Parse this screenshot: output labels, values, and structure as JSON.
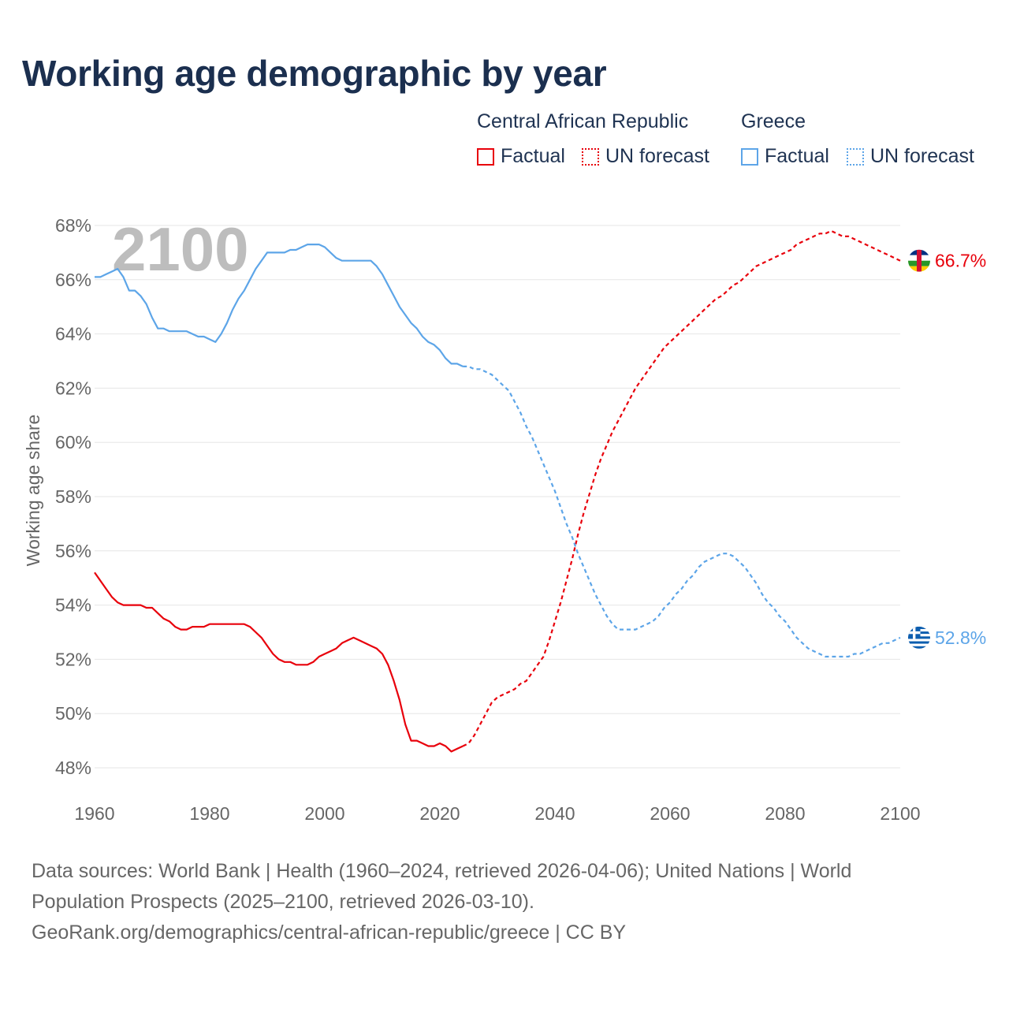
{
  "title": "Working age demographic by year",
  "legend": {
    "groups": [
      {
        "name": "Central African Republic",
        "factual_label": "Factual",
        "forecast_label": "UN forecast",
        "color": "#e8000b"
      },
      {
        "name": "Greece",
        "factual_label": "Factual",
        "forecast_label": "UN forecast",
        "color": "#5da5e8"
      }
    ]
  },
  "year_display": "2100",
  "footer": {
    "line1": "Data sources: World Bank | Health (1960–2024, retrieved 2026-04-06); United Nations | World",
    "line2": "Population Prospects (2025–2100, retrieved 2026-03-10).",
    "line3": "GeoRank.org/demographics/central-african-republic/greece | CC BY"
  },
  "chart_data": {
    "type": "line",
    "ylabel": "Working age share",
    "xlabel": "",
    "xlim": [
      1960,
      2100
    ],
    "ylim": [
      47,
      68.5
    ],
    "x_ticks": [
      "1960",
      "1980",
      "2000",
      "2020",
      "2040",
      "2060",
      "2080",
      "2100"
    ],
    "y_ticks": [
      "48%",
      "50%",
      "52%",
      "54%",
      "56%",
      "58%",
      "60%",
      "62%",
      "64%",
      "66%",
      "68%"
    ],
    "factual_years": [
      1960,
      2024
    ],
    "forecast_years": [
      2024,
      2100
    ],
    "series": [
      {
        "name": "Central African Republic",
        "color": "#e8000b",
        "end_label": "66.7%",
        "factual": [
          [
            1960,
            55.2
          ],
          [
            1961,
            54.9
          ],
          [
            1962,
            54.6
          ],
          [
            1963,
            54.3
          ],
          [
            1964,
            54.1
          ],
          [
            1965,
            54.0
          ],
          [
            1966,
            54.0
          ],
          [
            1967,
            54.0
          ],
          [
            1968,
            54.0
          ],
          [
            1969,
            53.9
          ],
          [
            1970,
            53.9
          ],
          [
            1971,
            53.7
          ],
          [
            1972,
            53.5
          ],
          [
            1973,
            53.4
          ],
          [
            1974,
            53.2
          ],
          [
            1975,
            53.1
          ],
          [
            1976,
            53.1
          ],
          [
            1977,
            53.2
          ],
          [
            1978,
            53.2
          ],
          [
            1979,
            53.2
          ],
          [
            1980,
            53.3
          ],
          [
            1981,
            53.3
          ],
          [
            1982,
            53.3
          ],
          [
            1983,
            53.3
          ],
          [
            1984,
            53.3
          ],
          [
            1985,
            53.3
          ],
          [
            1986,
            53.3
          ],
          [
            1987,
            53.2
          ],
          [
            1988,
            53.0
          ],
          [
            1989,
            52.8
          ],
          [
            1990,
            52.5
          ],
          [
            1991,
            52.2
          ],
          [
            1992,
            52.0
          ],
          [
            1993,
            51.9
          ],
          [
            1994,
            51.9
          ],
          [
            1995,
            51.8
          ],
          [
            1996,
            51.8
          ],
          [
            1997,
            51.8
          ],
          [
            1998,
            51.9
          ],
          [
            1999,
            52.1
          ],
          [
            2000,
            52.2
          ],
          [
            2001,
            52.3
          ],
          [
            2002,
            52.4
          ],
          [
            2003,
            52.6
          ],
          [
            2004,
            52.7
          ],
          [
            2005,
            52.8
          ],
          [
            2006,
            52.7
          ],
          [
            2007,
            52.6
          ],
          [
            2008,
            52.5
          ],
          [
            2009,
            52.4
          ],
          [
            2010,
            52.2
          ],
          [
            2011,
            51.8
          ],
          [
            2012,
            51.2
          ],
          [
            2013,
            50.5
          ],
          [
            2014,
            49.6
          ],
          [
            2015,
            49.0
          ],
          [
            2016,
            49.0
          ],
          [
            2017,
            48.9
          ],
          [
            2018,
            48.8
          ],
          [
            2019,
            48.8
          ],
          [
            2020,
            48.9
          ],
          [
            2021,
            48.8
          ],
          [
            2022,
            48.6
          ],
          [
            2023,
            48.7
          ],
          [
            2024,
            48.8
          ]
        ],
        "forecast": [
          [
            2024,
            48.8
          ],
          [
            2025,
            48.9
          ],
          [
            2026,
            49.2
          ],
          [
            2027,
            49.6
          ],
          [
            2028,
            50.0
          ],
          [
            2029,
            50.4
          ],
          [
            2030,
            50.6
          ],
          [
            2031,
            50.7
          ],
          [
            2032,
            50.8
          ],
          [
            2033,
            50.9
          ],
          [
            2034,
            51.1
          ],
          [
            2035,
            51.2
          ],
          [
            2036,
            51.5
          ],
          [
            2037,
            51.8
          ],
          [
            2038,
            52.1
          ],
          [
            2039,
            52.7
          ],
          [
            2040,
            53.4
          ],
          [
            2041,
            54.1
          ],
          [
            2042,
            54.9
          ],
          [
            2043,
            55.7
          ],
          [
            2044,
            56.6
          ],
          [
            2045,
            57.4
          ],
          [
            2046,
            58.1
          ],
          [
            2047,
            58.8
          ],
          [
            2048,
            59.4
          ],
          [
            2049,
            59.9
          ],
          [
            2050,
            60.4
          ],
          [
            2051,
            60.8
          ],
          [
            2052,
            61.2
          ],
          [
            2053,
            61.6
          ],
          [
            2054,
            62.0
          ],
          [
            2055,
            62.3
          ],
          [
            2056,
            62.6
          ],
          [
            2057,
            62.9
          ],
          [
            2058,
            63.2
          ],
          [
            2059,
            63.5
          ],
          [
            2060,
            63.7
          ],
          [
            2061,
            63.9
          ],
          [
            2062,
            64.1
          ],
          [
            2063,
            64.3
          ],
          [
            2064,
            64.5
          ],
          [
            2065,
            64.7
          ],
          [
            2066,
            64.9
          ],
          [
            2067,
            65.1
          ],
          [
            2068,
            65.3
          ],
          [
            2069,
            65.4
          ],
          [
            2070,
            65.6
          ],
          [
            2071,
            65.8
          ],
          [
            2072,
            65.9
          ],
          [
            2073,
            66.1
          ],
          [
            2074,
            66.3
          ],
          [
            2075,
            66.5
          ],
          [
            2076,
            66.6
          ],
          [
            2077,
            66.7
          ],
          [
            2078,
            66.8
          ],
          [
            2079,
            66.9
          ],
          [
            2080,
            67.0
          ],
          [
            2081,
            67.1
          ],
          [
            2082,
            67.3
          ],
          [
            2083,
            67.4
          ],
          [
            2084,
            67.5
          ],
          [
            2085,
            67.6
          ],
          [
            2086,
            67.7
          ],
          [
            2087,
            67.7
          ],
          [
            2088,
            67.8
          ],
          [
            2089,
            67.7
          ],
          [
            2090,
            67.6
          ],
          [
            2091,
            67.6
          ],
          [
            2092,
            67.5
          ],
          [
            2093,
            67.4
          ],
          [
            2094,
            67.3
          ],
          [
            2095,
            67.2
          ],
          [
            2096,
            67.1
          ],
          [
            2097,
            67.0
          ],
          [
            2098,
            66.9
          ],
          [
            2099,
            66.8
          ],
          [
            2100,
            66.7
          ]
        ]
      },
      {
        "name": "Greece",
        "color": "#5da5e8",
        "end_label": "52.8%",
        "factual": [
          [
            1960,
            66.1
          ],
          [
            1961,
            66.1
          ],
          [
            1962,
            66.2
          ],
          [
            1963,
            66.3
          ],
          [
            1964,
            66.4
          ],
          [
            1965,
            66.1
          ],
          [
            1966,
            65.6
          ],
          [
            1967,
            65.6
          ],
          [
            1968,
            65.4
          ],
          [
            1969,
            65.1
          ],
          [
            1970,
            64.6
          ],
          [
            1971,
            64.2
          ],
          [
            1972,
            64.2
          ],
          [
            1973,
            64.1
          ],
          [
            1974,
            64.1
          ],
          [
            1975,
            64.1
          ],
          [
            1976,
            64.1
          ],
          [
            1977,
            64.0
          ],
          [
            1978,
            63.9
          ],
          [
            1979,
            63.9
          ],
          [
            1980,
            63.8
          ],
          [
            1981,
            63.7
          ],
          [
            1982,
            64.0
          ],
          [
            1983,
            64.4
          ],
          [
            1984,
            64.9
          ],
          [
            1985,
            65.3
          ],
          [
            1986,
            65.6
          ],
          [
            1987,
            66.0
          ],
          [
            1988,
            66.4
          ],
          [
            1989,
            66.7
          ],
          [
            1990,
            67.0
          ],
          [
            1991,
            67.0
          ],
          [
            1992,
            67.0
          ],
          [
            1993,
            67.0
          ],
          [
            1994,
            67.1
          ],
          [
            1995,
            67.1
          ],
          [
            1996,
            67.2
          ],
          [
            1997,
            67.3
          ],
          [
            1998,
            67.3
          ],
          [
            1999,
            67.3
          ],
          [
            2000,
            67.2
          ],
          [
            2001,
            67.0
          ],
          [
            2002,
            66.8
          ],
          [
            2003,
            66.7
          ],
          [
            2004,
            66.7
          ],
          [
            2005,
            66.7
          ],
          [
            2006,
            66.7
          ],
          [
            2007,
            66.7
          ],
          [
            2008,
            66.7
          ],
          [
            2009,
            66.5
          ],
          [
            2010,
            66.2
          ],
          [
            2011,
            65.8
          ],
          [
            2012,
            65.4
          ],
          [
            2013,
            65.0
          ],
          [
            2014,
            64.7
          ],
          [
            2015,
            64.4
          ],
          [
            2016,
            64.2
          ],
          [
            2017,
            63.9
          ],
          [
            2018,
            63.7
          ],
          [
            2019,
            63.6
          ],
          [
            2020,
            63.4
          ],
          [
            2021,
            63.1
          ],
          [
            2022,
            62.9
          ],
          [
            2023,
            62.9
          ],
          [
            2024,
            62.8
          ]
        ],
        "forecast": [
          [
            2024,
            62.8
          ],
          [
            2025,
            62.8
          ],
          [
            2026,
            62.7
          ],
          [
            2027,
            62.7
          ],
          [
            2028,
            62.6
          ],
          [
            2029,
            62.5
          ],
          [
            2030,
            62.3
          ],
          [
            2031,
            62.1
          ],
          [
            2032,
            61.9
          ],
          [
            2033,
            61.5
          ],
          [
            2034,
            61.1
          ],
          [
            2035,
            60.6
          ],
          [
            2036,
            60.2
          ],
          [
            2037,
            59.7
          ],
          [
            2038,
            59.2
          ],
          [
            2039,
            58.7
          ],
          [
            2040,
            58.2
          ],
          [
            2041,
            57.6
          ],
          [
            2042,
            57.0
          ],
          [
            2043,
            56.5
          ],
          [
            2044,
            55.9
          ],
          [
            2045,
            55.4
          ],
          [
            2046,
            54.9
          ],
          [
            2047,
            54.4
          ],
          [
            2048,
            54.0
          ],
          [
            2049,
            53.6
          ],
          [
            2050,
            53.3
          ],
          [
            2051,
            53.1
          ],
          [
            2052,
            53.1
          ],
          [
            2053,
            53.1
          ],
          [
            2054,
            53.1
          ],
          [
            2055,
            53.2
          ],
          [
            2056,
            53.3
          ],
          [
            2057,
            53.4
          ],
          [
            2058,
            53.6
          ],
          [
            2059,
            53.9
          ],
          [
            2060,
            54.1
          ],
          [
            2061,
            54.4
          ],
          [
            2062,
            54.6
          ],
          [
            2063,
            54.9
          ],
          [
            2064,
            55.1
          ],
          [
            2065,
            55.4
          ],
          [
            2066,
            55.6
          ],
          [
            2067,
            55.7
          ],
          [
            2068,
            55.8
          ],
          [
            2069,
            55.9
          ],
          [
            2070,
            55.9
          ],
          [
            2071,
            55.8
          ],
          [
            2072,
            55.6
          ],
          [
            2073,
            55.4
          ],
          [
            2074,
            55.1
          ],
          [
            2075,
            54.8
          ],
          [
            2076,
            54.4
          ],
          [
            2077,
            54.1
          ],
          [
            2078,
            53.9
          ],
          [
            2079,
            53.6
          ],
          [
            2080,
            53.4
          ],
          [
            2081,
            53.1
          ],
          [
            2082,
            52.8
          ],
          [
            2083,
            52.6
          ],
          [
            2084,
            52.4
          ],
          [
            2085,
            52.3
          ],
          [
            2086,
            52.2
          ],
          [
            2087,
            52.1
          ],
          [
            2088,
            52.1
          ],
          [
            2089,
            52.1
          ],
          [
            2090,
            52.1
          ],
          [
            2091,
            52.1
          ],
          [
            2092,
            52.2
          ],
          [
            2093,
            52.2
          ],
          [
            2094,
            52.3
          ],
          [
            2095,
            52.4
          ],
          [
            2096,
            52.5
          ],
          [
            2097,
            52.6
          ],
          [
            2098,
            52.6
          ],
          [
            2099,
            52.7
          ],
          [
            2100,
            52.8
          ]
        ]
      }
    ]
  }
}
